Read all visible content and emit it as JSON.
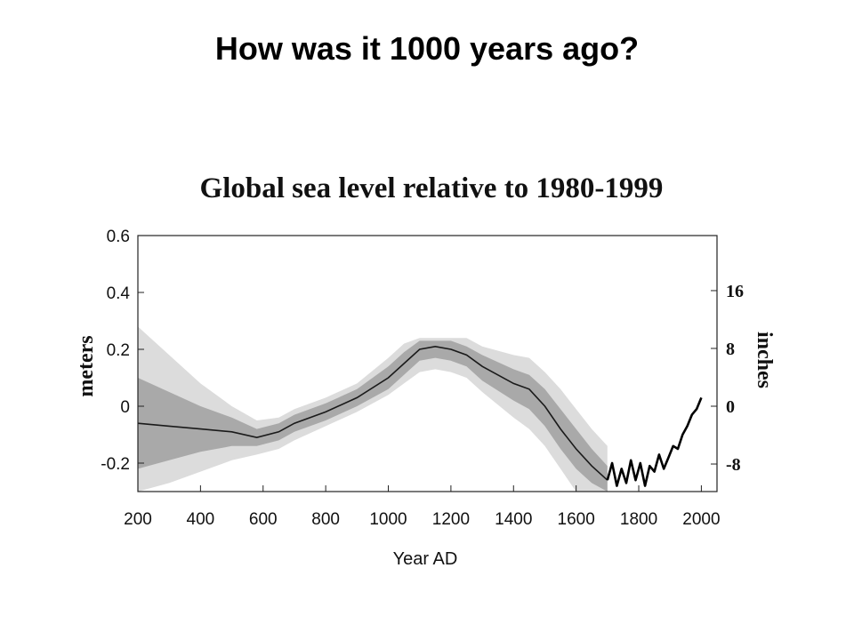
{
  "slide": {
    "title": "How was it 1000 years ago?"
  },
  "chart_data": {
    "type": "area",
    "title": "Global sea level relative to 1980-1999",
    "xlabel": "Year AD",
    "ylabel": "meters",
    "ylabel_right": "inches",
    "xlim": [
      200,
      2050
    ],
    "ylim": [
      -0.3,
      0.6
    ],
    "x_ticks": [
      "200",
      "400",
      "600",
      "800",
      "1000",
      "1200",
      "1400",
      "1600",
      "1800",
      "2000"
    ],
    "y_ticks": [
      "0.6",
      "0.4",
      "0.2",
      "0",
      "-0.2"
    ],
    "y_ticks_right": [
      "16",
      "8",
      "0",
      "-8"
    ],
    "y_tick_values": [
      0.6,
      0.4,
      0.2,
      0,
      -0.2
    ],
    "y_tick_right_values": [
      0.4064,
      0.2032,
      0,
      -0.2032
    ],
    "grid": false,
    "colors": {
      "outer_band": "#dcdcdc",
      "inner_band": "#a9a9a9",
      "line": "#1a1a1a",
      "observed": "#000000"
    },
    "series": [
      {
        "x": [
          200,
          300,
          400,
          500,
          580,
          650,
          700,
          800,
          900,
          1000,
          1050,
          1100,
          1150,
          1200,
          1250,
          1300,
          1400,
          1450,
          1500,
          1550,
          1600,
          1650,
          1700
        ],
        "values": [
          -0.06,
          -0.07,
          -0.08,
          -0.09,
          -0.11,
          -0.09,
          -0.06,
          -0.02,
          0.03,
          0.1,
          0.15,
          0.2,
          0.21,
          0.2,
          0.18,
          0.14,
          0.08,
          0.06,
          0.0,
          -0.08,
          -0.15,
          -0.21,
          -0.26
        ],
        "inner_lower": [
          -0.22,
          -0.19,
          -0.16,
          -0.14,
          -0.14,
          -0.12,
          -0.09,
          -0.05,
          0.0,
          0.06,
          0.11,
          0.16,
          0.17,
          0.16,
          0.14,
          0.09,
          0.02,
          -0.01,
          -0.07,
          -0.15,
          -0.22,
          -0.27,
          -0.3
        ],
        "inner_upper": [
          0.1,
          0.05,
          0.0,
          -0.04,
          -0.08,
          -0.06,
          -0.03,
          0.01,
          0.06,
          0.14,
          0.19,
          0.23,
          0.23,
          0.23,
          0.21,
          0.18,
          0.13,
          0.11,
          0.06,
          -0.01,
          -0.08,
          -0.15,
          -0.21
        ],
        "outer_lower": [
          -0.3,
          -0.27,
          -0.23,
          -0.19,
          -0.17,
          -0.15,
          -0.12,
          -0.07,
          -0.02,
          0.04,
          0.08,
          0.12,
          0.13,
          0.12,
          0.1,
          0.05,
          -0.04,
          -0.08,
          -0.14,
          -0.22,
          -0.3,
          -0.3,
          -0.3
        ],
        "outer_upper": [
          0.28,
          0.18,
          0.08,
          0.0,
          -0.05,
          -0.04,
          -0.01,
          0.03,
          0.08,
          0.17,
          0.22,
          0.24,
          0.24,
          0.24,
          0.24,
          0.21,
          0.18,
          0.17,
          0.12,
          0.06,
          -0.01,
          -0.08,
          -0.14
        ]
      },
      {
        "x": [
          1700,
          1715,
          1730,
          1745,
          1760,
          1775,
          1790,
          1805,
          1820,
          1835,
          1850,
          1865,
          1880,
          1895,
          1910,
          1925,
          1940,
          1955,
          1970,
          1985,
          2000
        ],
        "values": [
          -0.26,
          -0.2,
          -0.28,
          -0.22,
          -0.27,
          -0.19,
          -0.26,
          -0.2,
          -0.28,
          -0.21,
          -0.23,
          -0.17,
          -0.22,
          -0.18,
          -0.14,
          -0.15,
          -0.1,
          -0.07,
          -0.03,
          -0.01,
          0.03
        ]
      }
    ]
  }
}
